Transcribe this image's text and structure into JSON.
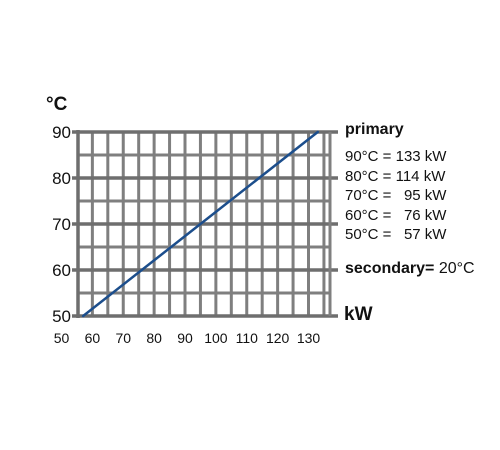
{
  "chart_data": {
    "type": "line",
    "title": "",
    "xlabel": "kW",
    "ylabel": "°C",
    "xlim": [
      50,
      135
    ],
    "ylim": [
      50,
      90
    ],
    "x_ticks": [
      "50",
      "60",
      "70",
      "80",
      "90",
      "100",
      "110",
      "120",
      "130"
    ],
    "y_ticks": [
      "90",
      "80",
      "70",
      "60",
      "50"
    ],
    "series": [
      {
        "color": "#1c4e8c",
        "points": [
          {
            "x": 57,
            "y": 50
          },
          {
            "x": 76,
            "y": 60
          },
          {
            "x": 95,
            "y": 70
          },
          {
            "x": 114,
            "y": 80
          },
          {
            "x": 133,
            "y": 90
          }
        ]
      }
    ],
    "grid": true,
    "grid_color": "#7f7f7f"
  },
  "legend": {
    "title": "primary",
    "rows": [
      "90°C = 133 kW",
      "80°C = 114 kW",
      "70°C =   95 kW",
      "60°C =   76 kW",
      "50°C =   57 kW"
    ],
    "secondary_label": "secondary=",
    "secondary_value": " 20°C"
  }
}
